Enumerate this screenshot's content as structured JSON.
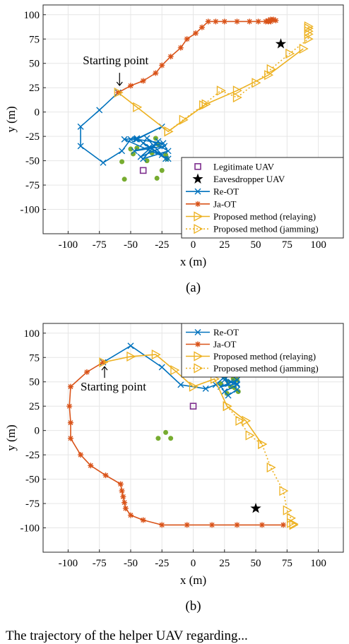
{
  "chart_data": [
    {
      "type": "line",
      "panel": "(a)",
      "xlabel": "x (m)",
      "ylabel": "y (m)",
      "xlim": [
        -120,
        120
      ],
      "ylim": [
        -125,
        110
      ],
      "xticks": [
        -100,
        -75,
        -50,
        -25,
        0,
        25,
        50,
        75,
        100
      ],
      "yticks": [
        -100,
        -75,
        -50,
        -25,
        0,
        25,
        50,
        75,
        100
      ],
      "grid": true,
      "legend_position": "bottom-right",
      "annotation": {
        "text": "Starting point",
        "x": -60,
        "y": 20
      },
      "points": [
        {
          "name": "Legitimate UAV",
          "marker": "square",
          "color": "#7e2f8e",
          "x": [
            -40
          ],
          "y": [
            -60
          ]
        },
        {
          "name": "Eavesdropper UAV",
          "marker": "star",
          "color": "#000000",
          "x": [
            70
          ],
          "y": [
            70
          ]
        },
        {
          "name": "ground users",
          "marker": "dot",
          "color": "#77ac30",
          "x": [
            -33,
            -28,
            -22,
            -30,
            -25,
            -21,
            -57,
            -55,
            -48,
            -45,
            -50,
            -29,
            -37
          ],
          "y": [
            -42,
            -33,
            -44,
            -27,
            -60,
            -48,
            -51,
            -69,
            -43,
            -37,
            -38,
            -68,
            -50
          ]
        }
      ],
      "series": [
        {
          "name": "Re-OT",
          "color": "#0072bd",
          "marker": "x",
          "x": [
            -60,
            -75,
            -90,
            -90,
            -72,
            -57,
            -50,
            -46,
            -25,
            -45,
            -24,
            -47,
            -23,
            -42,
            -28,
            -40,
            -20,
            -37,
            -25,
            -40,
            -22,
            -35,
            -45,
            -55,
            -20
          ],
          "y": [
            20,
            2,
            -15,
            -35,
            -52,
            -40,
            -28,
            -28,
            -15,
            -28,
            -32,
            -40,
            -35,
            -46,
            -30,
            -48,
            -40,
            -27,
            -44,
            -32,
            -48,
            -36,
            -27,
            -28,
            -48
          ]
        },
        {
          "name": "Ja-OT",
          "color": "#d95319",
          "marker": "asterisk",
          "x": [
            -60,
            -50,
            -40,
            -30,
            -25,
            -18,
            -10,
            -5,
            2,
            7,
            12,
            18,
            25,
            35,
            45,
            52,
            58,
            60,
            62,
            64,
            66,
            62,
            60
          ],
          "y": [
            20,
            27,
            32,
            40,
            48,
            57,
            66,
            75,
            81,
            87,
            93,
            93,
            93,
            93,
            93,
            93,
            93,
            94,
            95,
            95,
            94,
            93,
            93
          ]
        },
        {
          "name": "Proposed method (relaying)",
          "color": "#edb120",
          "marker": "triangle-right",
          "x": [
            -60,
            -45,
            -20,
            10,
            35,
            60,
            88
          ],
          "y": [
            20,
            5,
            -20,
            8,
            22,
            38,
            65
          ]
        },
        {
          "name": "Proposed method (jamming)",
          "color": "#edb120",
          "marker": "triangle-right",
          "dashed": true,
          "x": [
            -20,
            -8,
            8,
            22,
            35,
            50,
            62,
            77,
            92,
            92,
            92,
            92,
            92,
            92
          ],
          "y": [
            -20,
            -8,
            7,
            22,
            15,
            30,
            44,
            60,
            75,
            80,
            83,
            86,
            88,
            86
          ]
        }
      ]
    },
    {
      "type": "line",
      "panel": "(b)",
      "xlabel": "x (m)",
      "ylabel": "y (m)",
      "xlim": [
        -120,
        120
      ],
      "ylim": [
        -125,
        110
      ],
      "xticks": [
        -100,
        -75,
        -50,
        -25,
        0,
        25,
        50,
        75,
        100
      ],
      "yticks": [
        -100,
        -75,
        -50,
        -25,
        0,
        25,
        50,
        75,
        100
      ],
      "grid": true,
      "legend_position": "top-right",
      "annotation": {
        "text": "Starting point",
        "x": -72,
        "y": 70
      },
      "points": [
        {
          "name": "Legitimate UAV",
          "marker": "square",
          "color": "#7e2f8e",
          "x": [
            0
          ],
          "y": [
            25
          ]
        },
        {
          "name": "Eavesdropper UAV",
          "marker": "star",
          "color": "#000000",
          "x": [
            50
          ],
          "y": [
            -80
          ]
        },
        {
          "name": "ground users",
          "marker": "dot",
          "color": "#77ac30",
          "x": [
            25,
            28,
            30,
            27,
            22,
            32,
            35,
            33,
            36,
            -22,
            -18,
            -28
          ],
          "y": [
            55,
            50,
            45,
            38,
            48,
            53,
            52,
            44,
            40,
            -2,
            -8,
            -8
          ]
        }
      ],
      "series": [
        {
          "name": "Re-OT",
          "color": "#0072bd",
          "marker": "x",
          "x": [
            -72,
            -50,
            -25,
            -10,
            10,
            18,
            25,
            28,
            35,
            22,
            35,
            25,
            30,
            35,
            25,
            28,
            35
          ],
          "y": [
            70,
            87,
            65,
            47,
            43,
            47,
            55,
            48,
            52,
            45,
            48,
            52,
            50,
            47,
            40,
            36,
            42
          ]
        },
        {
          "name": "Ja-OT",
          "color": "#d95319",
          "marker": "asterisk",
          "x": [
            -72,
            -85,
            -98,
            -99,
            -98,
            -98,
            -90,
            -82,
            -70,
            -58,
            -57,
            -56,
            -55,
            -54,
            -50,
            -40,
            -25,
            -5,
            15,
            35,
            55,
            72
          ],
          "y": [
            70,
            60,
            45,
            25,
            8,
            -8,
            -25,
            -36,
            -46,
            -55,
            -62,
            -68,
            -74,
            -80,
            -87,
            -92,
            -97,
            -97,
            -97,
            -97,
            -97,
            -97
          ]
        },
        {
          "name": "Proposed method (relaying)",
          "color": "#edb120",
          "marker": "triangle-right",
          "x": [
            -72,
            -50,
            -30,
            -15,
            0,
            17,
            27,
            42,
            55
          ],
          "y": [
            70,
            76,
            78,
            62,
            45,
            53,
            25,
            10,
            -14
          ]
        },
        {
          "name": "Proposed method (jamming)",
          "color": "#edb120",
          "marker": "triangle-right",
          "dashed": true,
          "x": [
            27,
            37,
            45,
            55,
            62,
            72,
            75,
            78,
            78,
            80,
            80
          ],
          "y": [
            25,
            10,
            -5,
            -14,
            -38,
            -62,
            -82,
            -90,
            -95,
            -96,
            -97
          ]
        }
      ]
    }
  ],
  "captions": [
    "(a)",
    "(b)"
  ],
  "below_text": "The trajectory of the helper UAV regarding..."
}
